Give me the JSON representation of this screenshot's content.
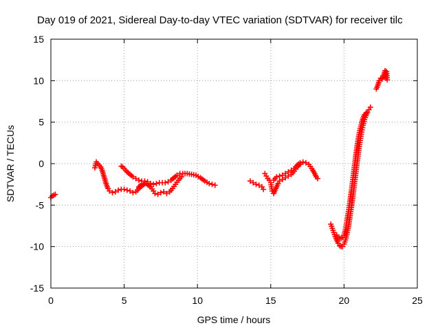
{
  "chart_data": {
    "type": "scatter",
    "title": "Day 019 of 2021, Sidereal Day-to-day VTEC variation (SDTVAR) for receiver tilc",
    "xlabel": "GPS time / hours",
    "ylabel": "SDTVAR / TECUs",
    "xlim": [
      0,
      25
    ],
    "ylim": [
      -15,
      15
    ],
    "xticks": [
      0,
      5,
      10,
      15,
      20,
      25
    ],
    "yticks": [
      -15,
      -10,
      -5,
      0,
      5,
      10,
      15
    ],
    "xtick_labels": [
      "0",
      "5",
      "10",
      "15",
      "20",
      "25"
    ],
    "ytick_labels": [
      "-15",
      "-10",
      "-5",
      "0",
      "5",
      "10",
      "15"
    ],
    "grid": true,
    "marker": "+",
    "marker_color": "#ff0000",
    "series": [
      {
        "name": "seg-1",
        "points": [
          [
            0.0,
            -4.1
          ],
          [
            0.1,
            -3.9
          ],
          [
            0.2,
            -3.8
          ],
          [
            0.3,
            -3.7
          ]
        ]
      },
      {
        "name": "seg-2",
        "points": [
          [
            3.0,
            -0.5
          ],
          [
            3.1,
            0.2
          ],
          [
            3.2,
            0.0
          ],
          [
            3.3,
            -0.2
          ],
          [
            3.4,
            -0.4
          ],
          [
            3.5,
            -0.8
          ],
          [
            3.6,
            -1.4
          ],
          [
            3.7,
            -2.0
          ],
          [
            3.8,
            -2.6
          ],
          [
            3.9,
            -3.0
          ],
          [
            4.0,
            -3.3
          ],
          [
            4.2,
            -3.5
          ],
          [
            4.4,
            -3.4
          ],
          [
            4.6,
            -3.2
          ],
          [
            4.8,
            -3.1
          ],
          [
            5.0,
            -3.1
          ],
          [
            5.2,
            -3.2
          ],
          [
            5.4,
            -3.3
          ],
          [
            5.6,
            -3.5
          ],
          [
            5.8,
            -3.4
          ],
          [
            6.0,
            -3.0
          ],
          [
            6.2,
            -2.7
          ],
          [
            6.4,
            -2.4
          ]
        ]
      },
      {
        "name": "seg-3",
        "points": [
          [
            4.8,
            -0.3
          ],
          [
            4.9,
            -0.4
          ],
          [
            5.0,
            -0.6
          ],
          [
            5.1,
            -0.8
          ],
          [
            5.2,
            -1.0
          ],
          [
            5.4,
            -1.3
          ],
          [
            5.6,
            -1.6
          ],
          [
            5.8,
            -1.8
          ],
          [
            6.0,
            -2.0
          ],
          [
            6.2,
            -2.1
          ],
          [
            6.4,
            -2.1
          ],
          [
            6.6,
            -2.2
          ],
          [
            6.8,
            -2.4
          ],
          [
            7.0,
            -2.5
          ],
          [
            7.2,
            -2.4
          ],
          [
            7.4,
            -2.3
          ],
          [
            7.6,
            -2.3
          ],
          [
            7.8,
            -2.3
          ],
          [
            8.0,
            -2.2
          ],
          [
            8.2,
            -2.0
          ],
          [
            8.4,
            -1.7
          ],
          [
            8.6,
            -1.4
          ],
          [
            8.8,
            -1.2
          ]
        ]
      },
      {
        "name": "seg-4",
        "points": [
          [
            6.0,
            -2.8
          ],
          [
            6.2,
            -2.5
          ],
          [
            6.5,
            -2.4
          ],
          [
            6.8,
            -2.8
          ],
          [
            7.0,
            -3.3
          ],
          [
            7.1,
            -3.6
          ],
          [
            7.3,
            -3.7
          ],
          [
            7.5,
            -3.5
          ],
          [
            7.7,
            -3.4
          ],
          [
            7.9,
            -3.6
          ],
          [
            8.1,
            -3.4
          ],
          [
            8.3,
            -3.0
          ],
          [
            8.5,
            -2.5
          ],
          [
            8.7,
            -2.0
          ],
          [
            8.9,
            -1.6
          ]
        ]
      },
      {
        "name": "seg-5",
        "points": [
          [
            9.0,
            -1.2
          ],
          [
            9.3,
            -1.2
          ],
          [
            9.6,
            -1.3
          ],
          [
            9.9,
            -1.4
          ],
          [
            10.2,
            -1.7
          ],
          [
            10.5,
            -2.1
          ],
          [
            10.8,
            -2.4
          ],
          [
            11.0,
            -2.5
          ],
          [
            11.2,
            -2.6
          ]
        ]
      },
      {
        "name": "seg-6",
        "points": [
          [
            13.6,
            -2.1
          ],
          [
            13.8,
            -2.3
          ],
          [
            14.0,
            -2.5
          ],
          [
            14.2,
            -2.6
          ],
          [
            14.4,
            -2.8
          ],
          [
            14.5,
            -3.1
          ]
        ]
      },
      {
        "name": "seg-7",
        "points": [
          [
            14.6,
            -1.2
          ],
          [
            14.7,
            -1.5
          ],
          [
            14.8,
            -1.8
          ],
          [
            14.9,
            -2.0
          ],
          [
            15.0,
            -2.3
          ],
          [
            15.05,
            -2.8
          ],
          [
            15.1,
            -3.3
          ],
          [
            15.2,
            -3.6
          ],
          [
            15.3,
            -3.2
          ],
          [
            15.4,
            -2.8
          ],
          [
            15.5,
            -2.4
          ],
          [
            15.6,
            -2.1
          ],
          [
            15.8,
            -1.9
          ],
          [
            16.0,
            -1.7
          ],
          [
            16.2,
            -1.5
          ],
          [
            16.4,
            -1.3
          ],
          [
            16.6,
            -0.9
          ],
          [
            16.8,
            -0.4
          ],
          [
            17.0,
            -0.1
          ]
        ]
      },
      {
        "name": "seg-8",
        "points": [
          [
            15.2,
            -2.0
          ],
          [
            15.4,
            -1.6
          ],
          [
            15.6,
            -1.5
          ],
          [
            15.8,
            -1.4
          ],
          [
            16.0,
            -1.2
          ],
          [
            16.2,
            -1.0
          ],
          [
            16.4,
            -0.8
          ],
          [
            16.6,
            -0.6
          ],
          [
            16.8,
            -0.2
          ],
          [
            17.0,
            0.1
          ],
          [
            17.2,
            0.2
          ],
          [
            17.4,
            0.1
          ],
          [
            17.6,
            -0.1
          ],
          [
            17.8,
            -0.6
          ],
          [
            18.0,
            -1.2
          ],
          [
            18.1,
            -1.6
          ],
          [
            18.2,
            -1.8
          ]
        ]
      },
      {
        "name": "seg-9",
        "points": [
          [
            19.1,
            -7.3
          ],
          [
            19.2,
            -7.8
          ],
          [
            19.3,
            -8.3
          ],
          [
            19.4,
            -8.8
          ],
          [
            19.5,
            -9.2
          ],
          [
            19.6,
            -9.6
          ],
          [
            19.7,
            -9.9
          ],
          [
            19.8,
            -10.0
          ],
          [
            19.9,
            -10.0
          ],
          [
            20.0,
            -9.7
          ],
          [
            20.1,
            -9.2
          ],
          [
            20.2,
            -8.5
          ],
          [
            20.3,
            -7.6
          ],
          [
            20.4,
            -6.5
          ],
          [
            20.5,
            -5.3
          ],
          [
            20.6,
            -4.0
          ],
          [
            20.7,
            -2.6
          ],
          [
            20.8,
            -1.2
          ],
          [
            20.9,
            0.2
          ],
          [
            21.0,
            1.6
          ],
          [
            21.1,
            2.8
          ],
          [
            21.2,
            3.8
          ],
          [
            21.3,
            4.6
          ],
          [
            21.4,
            5.3
          ],
          [
            21.5,
            5.8
          ],
          [
            21.6,
            6.2
          ],
          [
            21.7,
            6.5
          ],
          [
            21.8,
            6.8
          ]
        ]
      },
      {
        "name": "seg-10",
        "points": [
          [
            19.5,
            -8.6
          ],
          [
            19.6,
            -8.9
          ],
          [
            19.7,
            -9.0
          ],
          [
            19.8,
            -9.0
          ],
          [
            19.9,
            -8.9
          ],
          [
            20.0,
            -8.6
          ],
          [
            20.1,
            -7.9
          ],
          [
            20.2,
            -6.9
          ],
          [
            20.3,
            -5.8
          ],
          [
            20.4,
            -4.6
          ],
          [
            20.5,
            -3.3
          ],
          [
            20.6,
            -1.9
          ],
          [
            20.7,
            -0.5
          ],
          [
            20.8,
            0.9
          ],
          [
            20.9,
            2.2
          ],
          [
            21.0,
            3.3
          ],
          [
            21.1,
            4.2
          ],
          [
            21.2,
            4.9
          ],
          [
            21.3,
            5.5
          ],
          [
            21.4,
            5.9
          ],
          [
            21.5,
            6.1
          ]
        ]
      },
      {
        "name": "seg-11",
        "points": [
          [
            22.2,
            9.0
          ],
          [
            22.3,
            9.4
          ],
          [
            22.4,
            10.0
          ],
          [
            22.5,
            10.3
          ],
          [
            22.6,
            10.2
          ],
          [
            22.7,
            10.6
          ],
          [
            22.8,
            11.2
          ],
          [
            22.85,
            10.3
          ],
          [
            22.9,
            11.1
          ],
          [
            22.95,
            10.1
          ]
        ]
      }
    ]
  }
}
